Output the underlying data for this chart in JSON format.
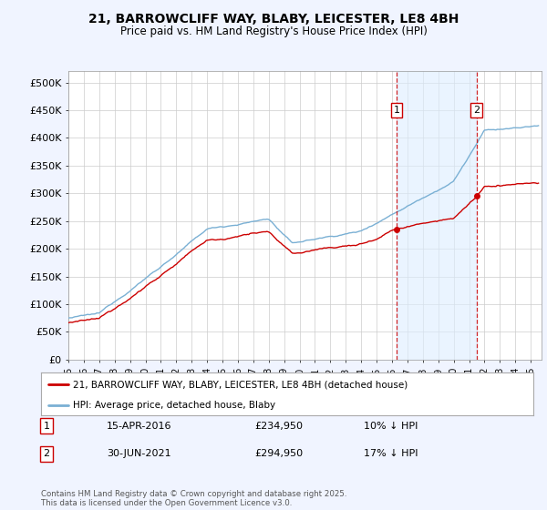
{
  "title": "21, BARROWCLIFF WAY, BLABY, LEICESTER, LE8 4BH",
  "subtitle": "Price paid vs. HM Land Registry's House Price Index (HPI)",
  "ylim": [
    0,
    520000
  ],
  "ytick_labels": [
    "£0",
    "£50K",
    "£100K",
    "£150K",
    "£200K",
    "£250K",
    "£300K",
    "£350K",
    "£400K",
    "£450K",
    "£500K"
  ],
  "sale1_date": "15-APR-2016",
  "sale1_price": 234950,
  "sale1_year": 2016.29,
  "sale1_label": "1",
  "sale1_hpi_diff": "10% ↓ HPI",
  "sale2_date": "30-JUN-2021",
  "sale2_price": 294950,
  "sale2_year": 2021.49,
  "sale2_label": "2",
  "sale2_hpi_diff": "17% ↓ HPI",
  "property_line_color": "#cc0000",
  "hpi_line_color": "#7ab0d4",
  "hpi_fill_color": "#ddeeff",
  "property_label": "21, BARROWCLIFF WAY, BLABY, LEICESTER, LE8 4BH (detached house)",
  "hpi_label": "HPI: Average price, detached house, Blaby",
  "footer": "Contains HM Land Registry data © Crown copyright and database right 2025.\nThis data is licensed under the Open Government Licence v3.0.",
  "background_color": "#f0f4ff",
  "plot_bg_color": "#ffffff",
  "vline_color": "#cc0000",
  "marker_color": "#cc0000",
  "xlim_start": 1995,
  "xlim_end": 2025.7
}
